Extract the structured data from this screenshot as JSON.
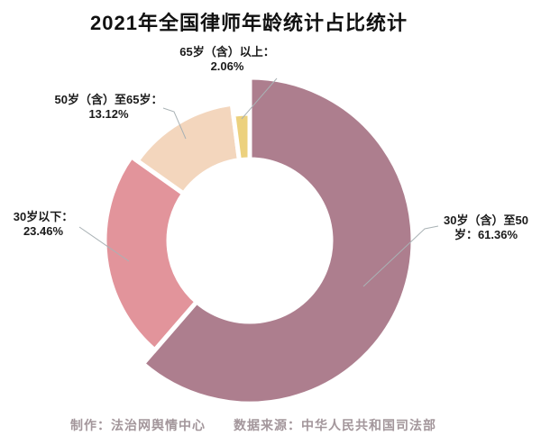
{
  "chart_data": {
    "type": "pie",
    "donut": true,
    "title": "2021年全国律师年龄统计占比统计",
    "unit": "%",
    "direction": "clockwise",
    "start_angle_deg": 0,
    "categories": [
      "30岁（含）至50岁",
      "30岁以下",
      "50岁（含）至65岁",
      "65岁（含）以上"
    ],
    "values": [
      61.36,
      23.46,
      13.12,
      2.06
    ],
    "colors": [
      "#ad7e8e",
      "#e2949b",
      "#f3d6bd",
      "#ecd17e"
    ],
    "leader_line_color": "#a9b2b5",
    "radius_hints": {
      "inner": 90,
      "outer_per_slice": [
        181,
        161,
        153,
        141
      ]
    },
    "labels": [
      {
        "line1": "30岁（含）至50",
        "line2": "岁：61.36%"
      },
      {
        "line1": "30岁以下：",
        "line2": "23.46%"
      },
      {
        "line1": "50岁（含）至65岁：",
        "line2": "13.12%"
      },
      {
        "line1": "65岁（含）以上：",
        "line2": "2.06%"
      }
    ]
  },
  "footer": {
    "maker": "制作：法治网舆情中心",
    "source": "数据来源：中华人民共和国司法部"
  }
}
